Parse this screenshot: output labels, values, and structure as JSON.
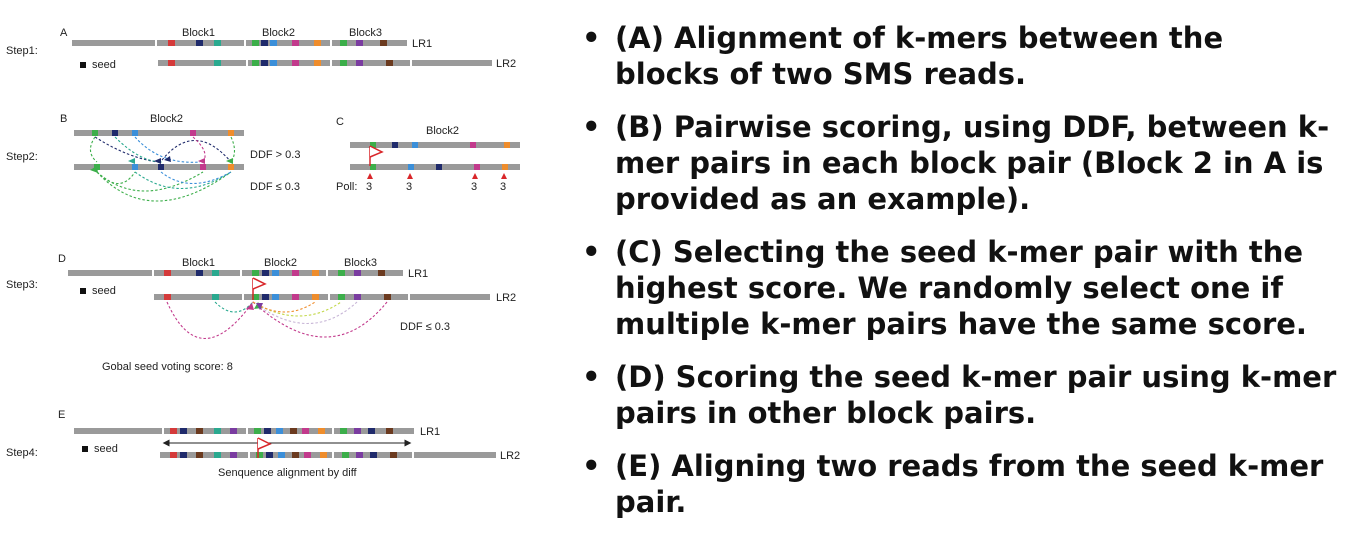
{
  "figure": {
    "panels": {
      "A": "A",
      "B": "B",
      "C": "C",
      "D": "D",
      "E": "E"
    },
    "steps": [
      "Step1:",
      "Step2:",
      "Step3:",
      "Step4:"
    ],
    "blocks": [
      "Block1",
      "Block2",
      "Block3"
    ],
    "reads": {
      "lr1": "LR1",
      "lr2": "LR2"
    },
    "seed_label": "seed",
    "ddf": {
      "gt": "DDF > 0.3",
      "le": "DDF ≤ 0.3"
    },
    "poll": {
      "label": "Poll:",
      "values": [
        "3",
        "3",
        "3",
        "3"
      ]
    },
    "global_score": "Gobal seed voting score:  8",
    "alignment_caption": "Senquence alignment by diff",
    "colors": {
      "bar": "#9a9a9a",
      "kmer_red": "#d43a3a",
      "kmer_teal": "#2aa98f",
      "kmer_navy": "#1f2a6b",
      "kmer_green": "#3cae4a",
      "kmer_blue": "#3b8fd9",
      "kmer_magenta": "#c23a8c",
      "kmer_orange": "#ef8d2c",
      "kmer_brown": "#6b3a1f",
      "kmer_purple": "#7a3ca0",
      "flag": "#d9262a"
    }
  },
  "bullets": [
    "(A) Alignment of k-mers between the blocks of two SMS reads.",
    "(B) Pairwise scoring, using DDF, between k-mer pairs in each block pair (Block 2 in A is provided as an example).",
    "(C) Selecting the seed k-mer pair with the highest score. We randomly select one if multiple k-mer pairs have the same score.",
    "(D) Scoring the seed k-mer pair using k-mer pairs in other block pairs.",
    " (E) Aligning two reads from the seed k-mer pair."
  ]
}
